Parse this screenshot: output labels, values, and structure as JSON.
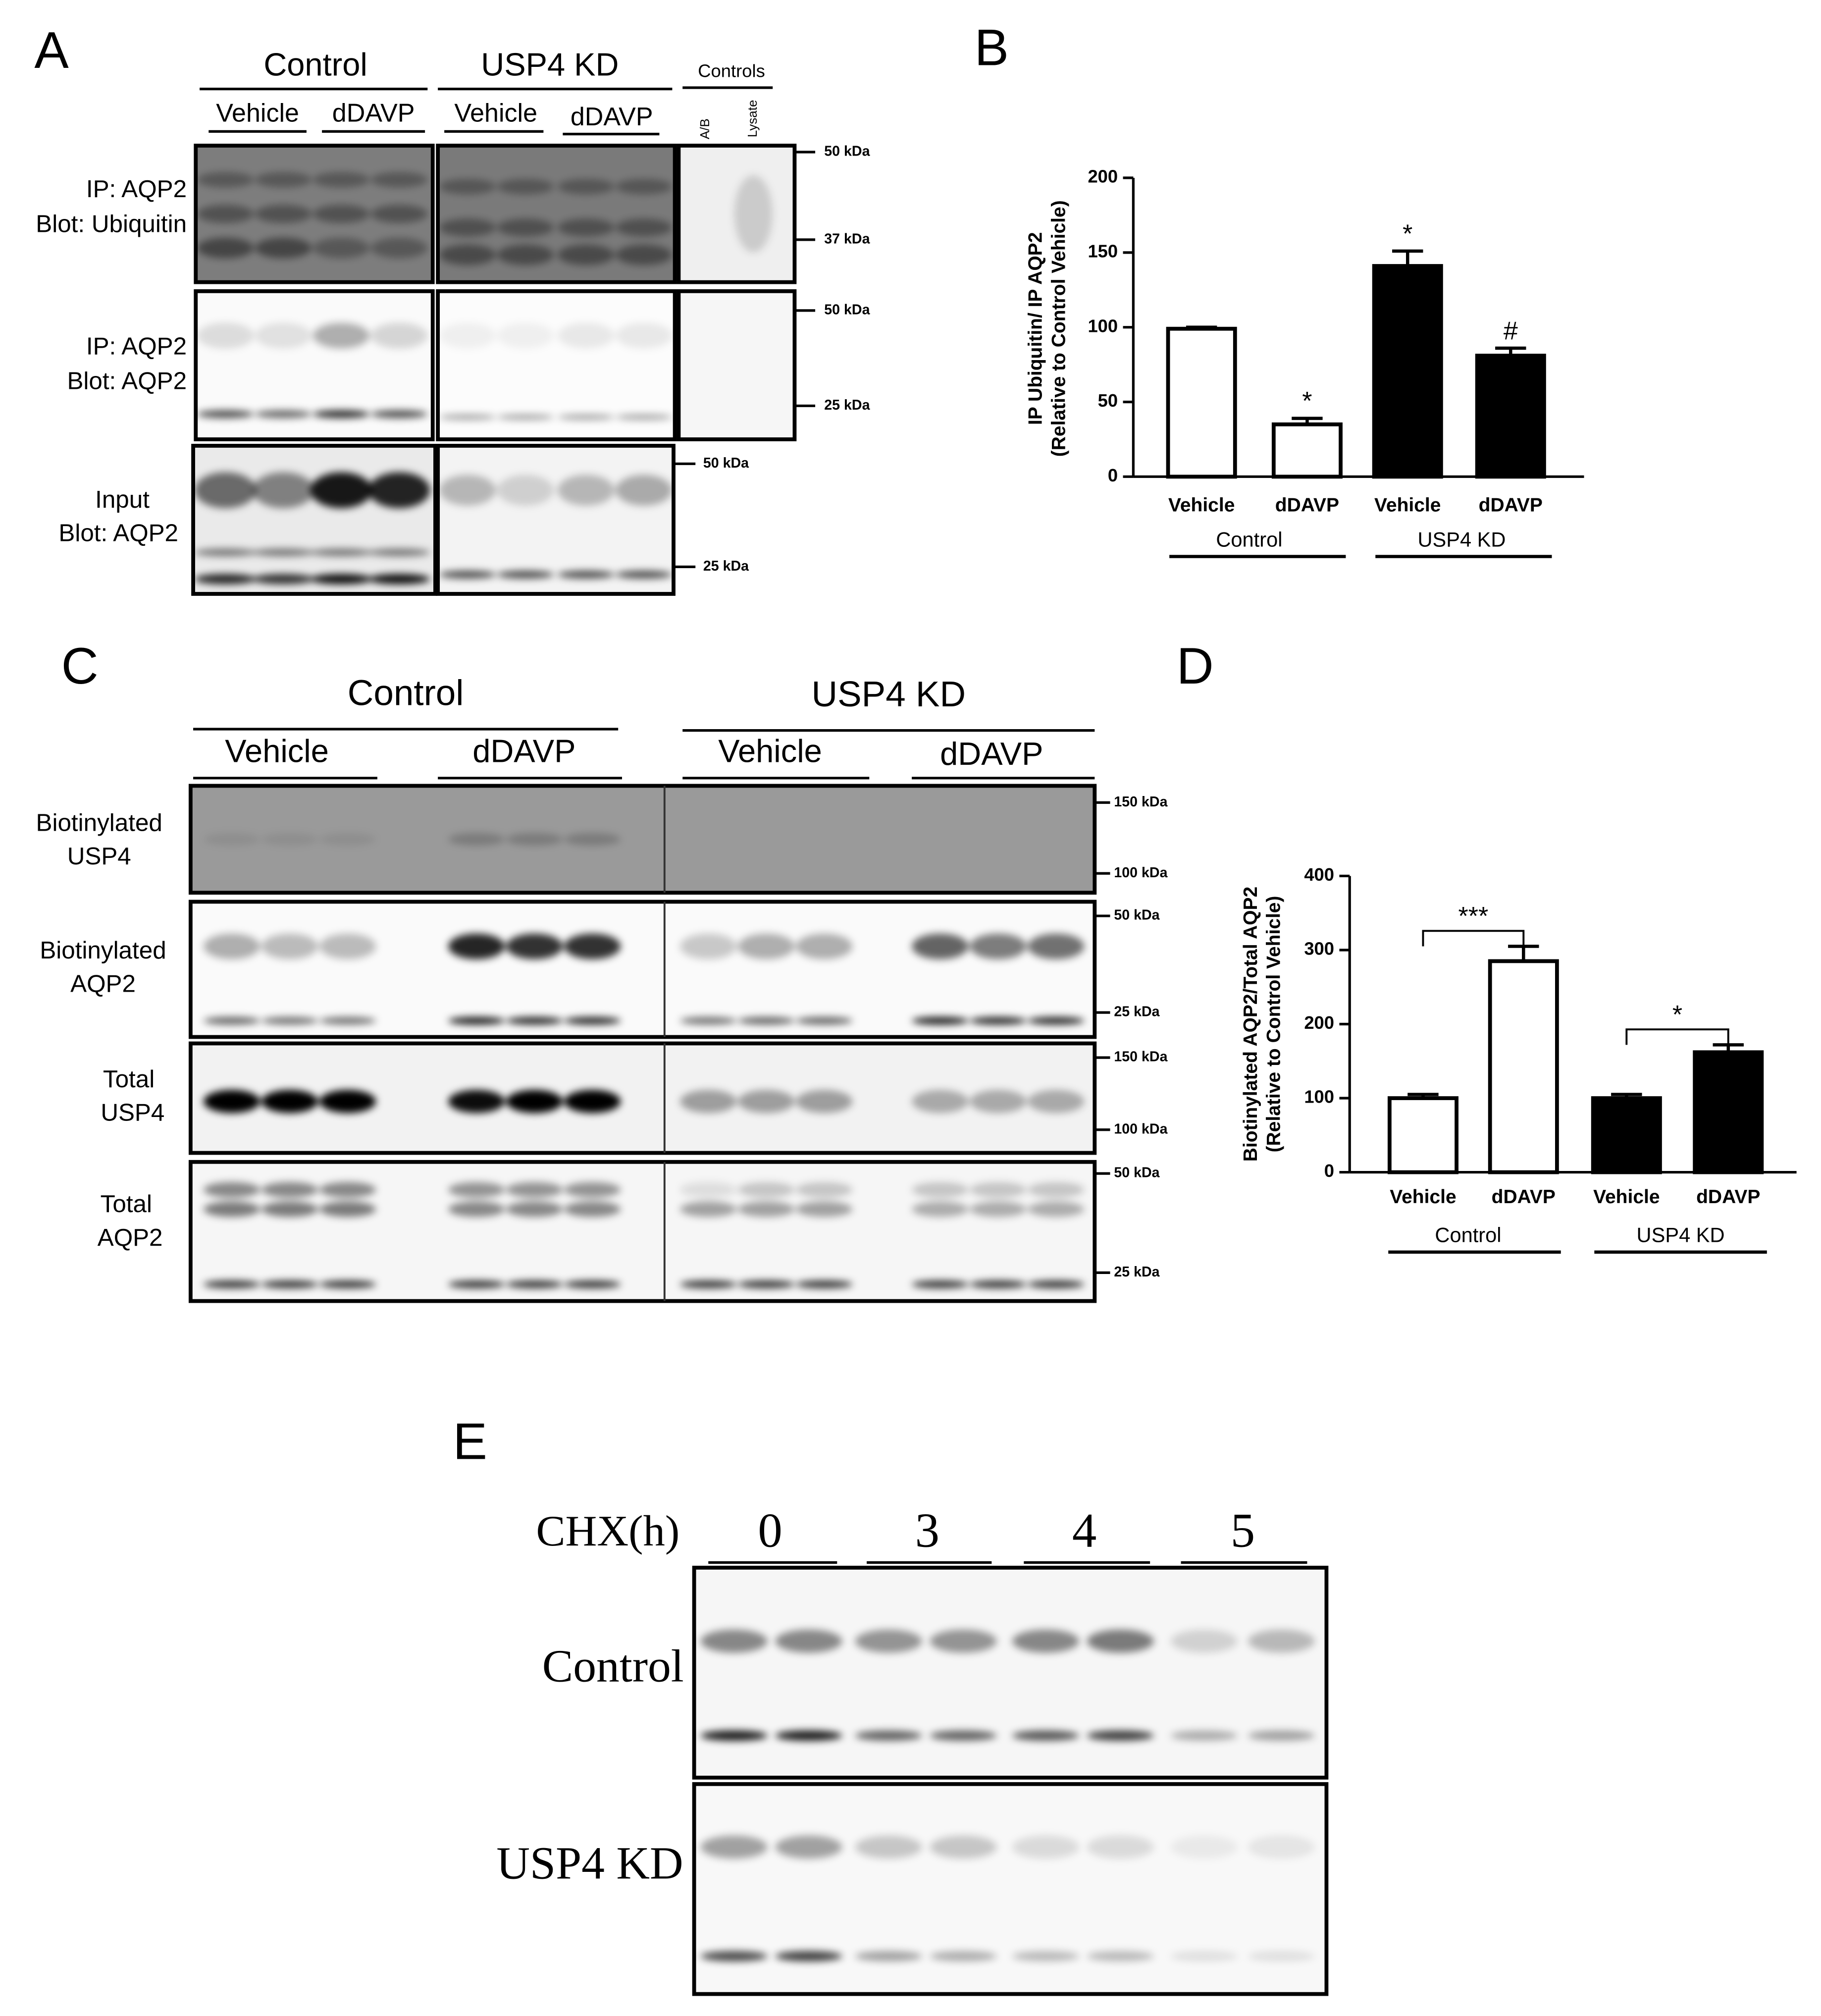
{
  "panel_a": {
    "label": "A",
    "groups": [
      "Control",
      "USP4 KD",
      "Controls"
    ],
    "treatments": [
      "Vehicle",
      "dDAVP",
      "Vehicle",
      "dDAVP"
    ],
    "control_lanes": [
      "A/B",
      "Lysate"
    ],
    "rows": [
      {
        "label": [
          "IP: AQP2",
          "Blot: Ubiquitin"
        ],
        "markers": [
          "50 kDa",
          "37 kDa"
        ]
      },
      {
        "label": [
          "IP: AQP2",
          "Blot: AQP2"
        ],
        "markers": [
          "50 kDa",
          "25 kDa"
        ]
      },
      {
        "label": [
          "Input",
          "Blot: AQP2"
        ],
        "markers": [
          "50 kDa",
          "25 kDa"
        ]
      }
    ]
  },
  "panel_c": {
    "label": "C",
    "groups": [
      "Control",
      "USP4 KD"
    ],
    "treatments": [
      "Vehicle",
      "dDAVP",
      "Vehicle",
      "dDAVP"
    ],
    "rows": [
      {
        "label": [
          "Biotinylated",
          "USP4"
        ],
        "markers": [
          "150 kDa",
          "100 kDa"
        ]
      },
      {
        "label": [
          "Biotinylated",
          "AQP2"
        ],
        "markers": [
          "50 kDa",
          "25 kDa"
        ]
      },
      {
        "label": [
          "Total",
          "USP4"
        ],
        "markers": [
          "150 kDa",
          "100 kDa"
        ]
      },
      {
        "label": [
          "Total",
          "AQP2"
        ],
        "markers": [
          "50 kDa",
          "25 kDa"
        ]
      }
    ]
  },
  "panel_e": {
    "label": "E",
    "axis_label": "CHX(h)",
    "timepoints": [
      "0",
      "3",
      "4",
      "5"
    ],
    "rows": [
      "Control",
      "USP4 KD"
    ]
  },
  "chart_data": [
    {
      "type": "bar",
      "label": "B",
      "ylabel": [
        "IP Ubiquitin/ IP AQP2",
        "(Relative to Control Vehicle)"
      ],
      "categories": [
        "Vehicle",
        "dDAVP",
        "Vehicle",
        "dDAVP"
      ],
      "groups": [
        "Control",
        "USP4 KD"
      ],
      "values": [
        99,
        35,
        141,
        81
      ],
      "errors": [
        1,
        4,
        10,
        5
      ],
      "colors": [
        "#ffffff",
        "#ffffff",
        "#000000",
        "#000000"
      ],
      "annotations": [
        null,
        "*",
        "*",
        "#"
      ],
      "ylim": [
        0,
        200
      ],
      "yticks": [
        0,
        50,
        100,
        150,
        200
      ]
    },
    {
      "type": "bar",
      "label": "D",
      "ylabel": [
        "Biotinylated AQP2/Total AQP2",
        "(Relative to Control Vehicle)"
      ],
      "categories": [
        "Vehicle",
        "dDAVP",
        "Vehicle",
        "dDAVP"
      ],
      "groups": [
        "Control",
        "USP4 KD"
      ],
      "values": [
        100,
        285,
        100,
        162
      ],
      "errors": [
        5,
        20,
        5,
        10
      ],
      "colors": [
        "#ffffff",
        "#ffffff",
        "#000000",
        "#000000"
      ],
      "brackets": [
        "***",
        "*"
      ],
      "ylim": [
        0,
        400
      ],
      "yticks": [
        0,
        100,
        200,
        300,
        400
      ]
    }
  ]
}
